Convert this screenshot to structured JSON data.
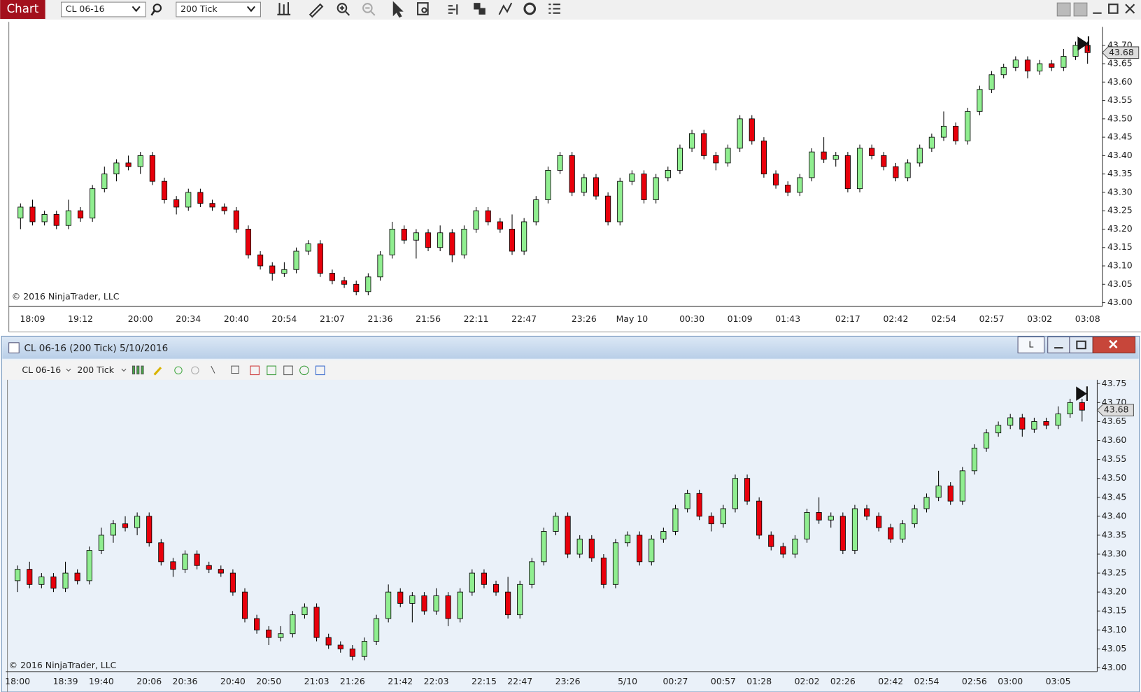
{
  "ui": {
    "chart_button": "Chart",
    "instrument": "CL 06-16",
    "interval": "200 Tick",
    "window_title": "CL 06-16 (200 Tick)  5/10/2016",
    "toolbar_instrument": "CL 06-16",
    "toolbar_interval": "200 Tick",
    "link_button": "L"
  },
  "chart_data": [
    {
      "type": "candlestick",
      "copyright": "© 2016 NinjaTrader, LLC",
      "last_label": "43.68",
      "up_color": "#90ee90",
      "down_color": "#e8000b",
      "categories": [
        null,
        "18:09",
        null,
        null,
        null,
        "19:12",
        null,
        null,
        null,
        null,
        "20:00",
        null,
        null,
        null,
        "20:34",
        null,
        null,
        null,
        "20:40",
        null,
        null,
        null,
        "20:54",
        null,
        null,
        null,
        "21:07",
        null,
        null,
        null,
        "21:36",
        null,
        null,
        null,
        "21:56",
        null,
        null,
        null,
        "22:11",
        null,
        null,
        null,
        "22:47",
        null,
        null,
        null,
        null,
        "23:26",
        null,
        null,
        null,
        "May 10",
        null,
        null,
        null,
        null,
        "00:30",
        null,
        null,
        null,
        "01:09",
        null,
        null,
        null,
        "01:43",
        null,
        null,
        null,
        null,
        "02:17",
        null,
        null,
        null,
        "02:42",
        null,
        null,
        null,
        "02:54",
        null,
        null,
        null,
        "02:57",
        null,
        null,
        null,
        "03:02",
        null,
        null,
        null,
        "03:08"
      ],
      "open": [
        43.23,
        43.26,
        43.22,
        43.24,
        43.21,
        43.25,
        43.23,
        43.31,
        43.35,
        43.38,
        43.37,
        43.4,
        43.33,
        43.28,
        43.26,
        43.3,
        43.27,
        43.26,
        43.25,
        43.2,
        43.13,
        43.1,
        43.08,
        43.09,
        43.14,
        43.16,
        43.08,
        43.06,
        43.05,
        43.03,
        43.07,
        43.13,
        43.2,
        43.17,
        43.19,
        43.15,
        43.19,
        43.13,
        43.2,
        43.25,
        43.22,
        43.2,
        43.14,
        43.22,
        43.28,
        43.36,
        43.4,
        43.3,
        43.34,
        43.29,
        43.22,
        43.33,
        43.35,
        43.28,
        43.34,
        43.36,
        43.42,
        43.46,
        43.4,
        43.38,
        43.42,
        43.5,
        43.44,
        43.35,
        43.32,
        43.3,
        43.34,
        43.41,
        43.39,
        43.4,
        43.31,
        43.42,
        43.4,
        43.37,
        43.34,
        43.38,
        43.42,
        43.45,
        43.48,
        43.44,
        43.52,
        43.58,
        43.62,
        43.64,
        43.66,
        43.63,
        43.65,
        43.64,
        43.67,
        43.7
      ],
      "high": [
        43.27,
        43.28,
        43.25,
        43.25,
        43.28,
        43.26,
        43.32,
        43.37,
        43.39,
        43.4,
        43.41,
        43.41,
        43.34,
        43.29,
        43.31,
        43.31,
        43.28,
        43.27,
        43.26,
        43.21,
        43.14,
        43.11,
        43.11,
        43.15,
        43.17,
        43.17,
        43.09,
        43.07,
        43.06,
        43.08,
        43.14,
        43.22,
        43.21,
        43.2,
        43.2,
        43.21,
        43.2,
        43.21,
        43.26,
        43.26,
        43.23,
        43.24,
        43.23,
        43.29,
        43.37,
        43.41,
        43.41,
        43.35,
        43.35,
        43.3,
        43.34,
        43.36,
        43.36,
        43.35,
        43.37,
        43.43,
        43.47,
        43.47,
        43.41,
        43.43,
        43.51,
        43.51,
        43.45,
        43.36,
        43.33,
        43.35,
        43.42,
        43.45,
        43.41,
        43.41,
        43.43,
        43.43,
        43.41,
        43.38,
        43.39,
        43.43,
        43.46,
        43.52,
        43.49,
        43.53,
        43.59,
        43.63,
        43.65,
        43.67,
        43.67,
        43.66,
        43.66,
        43.69,
        43.71,
        43.71
      ],
      "low": [
        43.2,
        43.21,
        43.21,
        43.2,
        43.2,
        43.22,
        43.22,
        43.3,
        43.33,
        43.36,
        43.35,
        43.32,
        43.27,
        43.24,
        43.25,
        43.26,
        43.25,
        43.24,
        43.19,
        43.12,
        43.09,
        43.06,
        43.07,
        43.08,
        43.13,
        43.07,
        43.05,
        43.04,
        43.02,
        43.02,
        43.06,
        43.12,
        43.16,
        43.12,
        43.14,
        43.14,
        43.11,
        43.12,
        43.19,
        43.21,
        43.19,
        43.13,
        43.13,
        43.21,
        43.27,
        43.35,
        43.29,
        43.29,
        43.28,
        43.21,
        43.21,
        43.32,
        43.27,
        43.27,
        43.33,
        43.35,
        43.41,
        43.39,
        43.36,
        43.37,
        43.41,
        43.43,
        43.34,
        43.31,
        43.29,
        43.29,
        43.33,
        43.38,
        43.37,
        43.3,
        43.3,
        43.39,
        43.36,
        43.33,
        43.33,
        43.37,
        43.41,
        43.44,
        43.43,
        43.43,
        43.51,
        43.57,
        43.61,
        43.63,
        43.61,
        43.62,
        43.63,
        43.63,
        43.66,
        43.65
      ],
      "close": [
        43.26,
        43.22,
        43.24,
        43.21,
        43.25,
        43.23,
        43.31,
        43.35,
        43.38,
        43.37,
        43.4,
        43.33,
        43.28,
        43.26,
        43.3,
        43.27,
        43.26,
        43.25,
        43.2,
        43.13,
        43.1,
        43.08,
        43.09,
        43.14,
        43.16,
        43.08,
        43.06,
        43.05,
        43.03,
        43.07,
        43.13,
        43.2,
        43.17,
        43.19,
        43.15,
        43.19,
        43.13,
        43.2,
        43.25,
        43.22,
        43.2,
        43.14,
        43.22,
        43.28,
        43.36,
        43.4,
        43.3,
        43.34,
        43.29,
        43.22,
        43.33,
        43.35,
        43.28,
        43.34,
        43.36,
        43.42,
        43.46,
        43.4,
        43.38,
        43.42,
        43.5,
        43.44,
        43.35,
        43.32,
        43.3,
        43.34,
        43.41,
        43.39,
        43.4,
        43.31,
        43.42,
        43.4,
        43.37,
        43.34,
        43.38,
        43.42,
        43.45,
        43.48,
        43.44,
        43.52,
        43.58,
        43.62,
        43.64,
        43.66,
        43.63,
        43.65,
        43.64,
        43.67,
        43.7,
        43.68
      ],
      "ylim": [
        42.99,
        43.75
      ],
      "yticks": [
        {
          "value": 43.0,
          "label": "43.00"
        },
        43.05,
        {
          "value": 43.1,
          "label": "43.10"
        },
        43.15,
        {
          "value": 43.2,
          "label": "43.20"
        },
        43.25,
        {
          "value": 43.3,
          "label": "43.30"
        },
        43.35,
        {
          "value": 43.4,
          "label": "43.40"
        },
        43.45,
        {
          "value": 43.5,
          "label": "43.50"
        },
        43.55,
        {
          "value": 43.6,
          "label": "43.60"
        },
        43.65,
        {
          "value": 43.7,
          "label": "43.70"
        }
      ]
    },
    {
      "type": "candlestick",
      "copyright": "© 2016 NinjaTrader, LLC",
      "last_label": "43.68",
      "up_color": "#90ee90",
      "down_color": "#e8000b",
      "categories": [
        "18:00",
        null,
        null,
        null,
        "18:39",
        null,
        null,
        "19:40",
        null,
        null,
        null,
        "20:06",
        null,
        null,
        "20:36",
        null,
        null,
        null,
        "20:40",
        null,
        null,
        "20:50",
        null,
        null,
        null,
        "21:03",
        null,
        null,
        "21:26",
        null,
        null,
        null,
        "21:42",
        null,
        null,
        "22:03",
        null,
        null,
        null,
        "22:15",
        null,
        null,
        "22:47",
        null,
        null,
        null,
        "23:26",
        null,
        null,
        null,
        null,
        "5/10",
        null,
        null,
        null,
        "00:27",
        null,
        null,
        null,
        "00:57",
        null,
        null,
        "01:28",
        null,
        null,
        null,
        "02:02",
        null,
        null,
        "02:26",
        null,
        null,
        null,
        "02:42",
        null,
        null,
        "02:54",
        null,
        null,
        null,
        "02:56",
        null,
        null,
        "03:00",
        null,
        null,
        null,
        "03:05",
        null,
        null
      ],
      "open": [
        43.23,
        43.26,
        43.22,
        43.24,
        43.21,
        43.25,
        43.23,
        43.31,
        43.35,
        43.38,
        43.37,
        43.4,
        43.33,
        43.28,
        43.26,
        43.3,
        43.27,
        43.26,
        43.25,
        43.2,
        43.13,
        43.1,
        43.08,
        43.09,
        43.14,
        43.16,
        43.08,
        43.06,
        43.05,
        43.03,
        43.07,
        43.13,
        43.2,
        43.17,
        43.19,
        43.15,
        43.19,
        43.13,
        43.2,
        43.25,
        43.22,
        43.2,
        43.14,
        43.22,
        43.28,
        43.36,
        43.4,
        43.3,
        43.34,
        43.29,
        43.22,
        43.33,
        43.35,
        43.28,
        43.34,
        43.36,
        43.42,
        43.46,
        43.4,
        43.38,
        43.42,
        43.5,
        43.44,
        43.35,
        43.32,
        43.3,
        43.34,
        43.41,
        43.39,
        43.4,
        43.31,
        43.42,
        43.4,
        43.37,
        43.34,
        43.38,
        43.42,
        43.45,
        43.48,
        43.44,
        43.52,
        43.58,
        43.62,
        43.64,
        43.66,
        43.63,
        43.65,
        43.64,
        43.67,
        43.7
      ],
      "high": [
        43.27,
        43.28,
        43.25,
        43.25,
        43.28,
        43.26,
        43.32,
        43.37,
        43.39,
        43.4,
        43.41,
        43.41,
        43.34,
        43.29,
        43.31,
        43.31,
        43.28,
        43.27,
        43.26,
        43.21,
        43.14,
        43.11,
        43.11,
        43.15,
        43.17,
        43.17,
        43.09,
        43.07,
        43.06,
        43.08,
        43.14,
        43.22,
        43.21,
        43.2,
        43.2,
        43.21,
        43.2,
        43.21,
        43.26,
        43.26,
        43.23,
        43.24,
        43.23,
        43.29,
        43.37,
        43.41,
        43.41,
        43.35,
        43.35,
        43.3,
        43.34,
        43.36,
        43.36,
        43.35,
        43.37,
        43.43,
        43.47,
        43.47,
        43.41,
        43.43,
        43.51,
        43.51,
        43.45,
        43.36,
        43.33,
        43.35,
        43.42,
        43.45,
        43.41,
        43.41,
        43.43,
        43.43,
        43.41,
        43.38,
        43.39,
        43.43,
        43.46,
        43.52,
        43.49,
        43.53,
        43.59,
        43.63,
        43.65,
        43.67,
        43.67,
        43.66,
        43.66,
        43.69,
        43.71,
        43.71
      ],
      "low": [
        43.2,
        43.21,
        43.21,
        43.2,
        43.2,
        43.22,
        43.22,
        43.3,
        43.33,
        43.36,
        43.35,
        43.32,
        43.27,
        43.24,
        43.25,
        43.26,
        43.25,
        43.24,
        43.19,
        43.12,
        43.09,
        43.06,
        43.07,
        43.08,
        43.13,
        43.07,
        43.05,
        43.04,
        43.02,
        43.02,
        43.06,
        43.12,
        43.16,
        43.12,
        43.14,
        43.14,
        43.11,
        43.12,
        43.19,
        43.21,
        43.19,
        43.13,
        43.13,
        43.21,
        43.27,
        43.35,
        43.29,
        43.29,
        43.28,
        43.21,
        43.21,
        43.32,
        43.27,
        43.27,
        43.33,
        43.35,
        43.41,
        43.39,
        43.36,
        43.37,
        43.41,
        43.43,
        43.34,
        43.31,
        43.29,
        43.29,
        43.33,
        43.38,
        43.37,
        43.3,
        43.3,
        43.39,
        43.36,
        43.33,
        43.33,
        43.37,
        43.41,
        43.44,
        43.43,
        43.43,
        43.51,
        43.57,
        43.61,
        43.63,
        43.61,
        43.62,
        43.63,
        43.63,
        43.66,
        43.65
      ],
      "close": [
        43.26,
        43.22,
        43.24,
        43.21,
        43.25,
        43.23,
        43.31,
        43.35,
        43.38,
        43.37,
        43.4,
        43.33,
        43.28,
        43.26,
        43.3,
        43.27,
        43.26,
        43.25,
        43.2,
        43.13,
        43.1,
        43.08,
        43.09,
        43.14,
        43.16,
        43.08,
        43.06,
        43.05,
        43.03,
        43.07,
        43.13,
        43.2,
        43.17,
        43.19,
        43.15,
        43.19,
        43.13,
        43.2,
        43.25,
        43.22,
        43.2,
        43.14,
        43.22,
        43.28,
        43.36,
        43.4,
        43.3,
        43.34,
        43.29,
        43.22,
        43.33,
        43.35,
        43.28,
        43.34,
        43.36,
        43.42,
        43.46,
        43.4,
        43.38,
        43.42,
        43.5,
        43.44,
        43.35,
        43.32,
        43.3,
        43.34,
        43.41,
        43.39,
        43.4,
        43.31,
        43.42,
        43.4,
        43.37,
        43.34,
        43.38,
        43.42,
        43.45,
        43.48,
        43.44,
        43.52,
        43.58,
        43.62,
        43.64,
        43.66,
        43.63,
        43.65,
        43.64,
        43.67,
        43.7,
        43.68
      ],
      "ylim": [
        42.99,
        43.76
      ],
      "yticks": [
        {
          "value": 43.0,
          "label": "43.00"
        },
        43.05,
        {
          "value": 43.1,
          "label": "43.10"
        },
        43.15,
        {
          "value": 43.2,
          "label": "43.20"
        },
        43.25,
        {
          "value": 43.3,
          "label": "43.30"
        },
        43.35,
        {
          "value": 43.4,
          "label": "43.40"
        },
        43.45,
        {
          "value": 43.5,
          "label": "43.50"
        },
        43.55,
        {
          "value": 43.6,
          "label": "43.60"
        },
        43.65,
        {
          "value": 43.7,
          "label": "43.70"
        },
        43.75
      ]
    }
  ]
}
